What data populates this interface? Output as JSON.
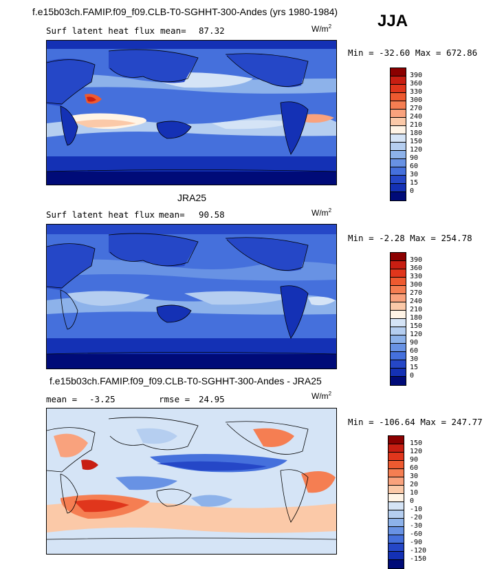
{
  "header": {
    "top_title": "f.e15b03ch.FAMIP.f09_f09.CLB-T0-SGHHT-300-Andes (yrs 1980-1984)",
    "season": "JJA"
  },
  "panels": [
    {
      "field": "Surf latent heat flux",
      "stat_label": "mean=",
      "stat_value": "87.32",
      "unit_base": "W/m",
      "unit_exp": "2",
      "minmax": "Min = -32.60 Max = 672.86",
      "levels": [
        "390",
        "360",
        "330",
        "300",
        "270",
        "240",
        "210",
        "180",
        "150",
        "120",
        "90",
        "60",
        "30",
        "15",
        "0"
      ],
      "colors": [
        "#8b0000",
        "#c81e12",
        "#e0361c",
        "#ee5a30",
        "#f57e52",
        "#f9a27d",
        "#fbc9a8",
        "#fff4e6",
        "#d5e4f6",
        "#b5cef0",
        "#8db2ea",
        "#6892e4",
        "#4570dc",
        "#2547c7",
        "#1431b5",
        "#000b78"
      ]
    },
    {
      "heading": "JRA25",
      "field": "Surf latent heat flux",
      "stat_label": "mean=",
      "stat_value": "90.58",
      "unit_base": "W/m",
      "unit_exp": "2",
      "minmax": "Min =  -2.28 Max = 254.78",
      "levels": [
        "390",
        "360",
        "330",
        "300",
        "270",
        "240",
        "210",
        "180",
        "150",
        "120",
        "90",
        "60",
        "30",
        "15",
        "0"
      ],
      "colors": [
        "#8b0000",
        "#c81e12",
        "#e0361c",
        "#ee5a30",
        "#f57e52",
        "#f9a27d",
        "#fbc9a8",
        "#fff4e6",
        "#d5e4f6",
        "#b5cef0",
        "#8db2ea",
        "#6892e4",
        "#4570dc",
        "#2547c7",
        "#1431b5",
        "#000b78"
      ]
    },
    {
      "heading": "f.e15b03ch.FAMIP.f09_f09.CLB-T0-SGHHT-300-Andes - JRA25",
      "stat_label": "mean =",
      "stat_value": "-3.25",
      "rmse_label": "rmse =",
      "rmse_value": "24.95",
      "unit_base": "W/m",
      "unit_exp": "2",
      "minmax": "Min = -106.64 Max = 247.77",
      "levels": [
        "150",
        "120",
        "90",
        "60",
        "30",
        "20",
        "10",
        "0",
        "-10",
        "-20",
        "-30",
        "-60",
        "-90",
        "-120",
        "-150"
      ],
      "colors": [
        "#8b0000",
        "#c81e12",
        "#e0361c",
        "#ee5a30",
        "#f57e52",
        "#f9a27d",
        "#fbc9a8",
        "#fff4e6",
        "#d5e4f6",
        "#b5cef0",
        "#8db2ea",
        "#6892e4",
        "#4570dc",
        "#2547c7",
        "#1431b5",
        "#000b78"
      ]
    }
  ]
}
